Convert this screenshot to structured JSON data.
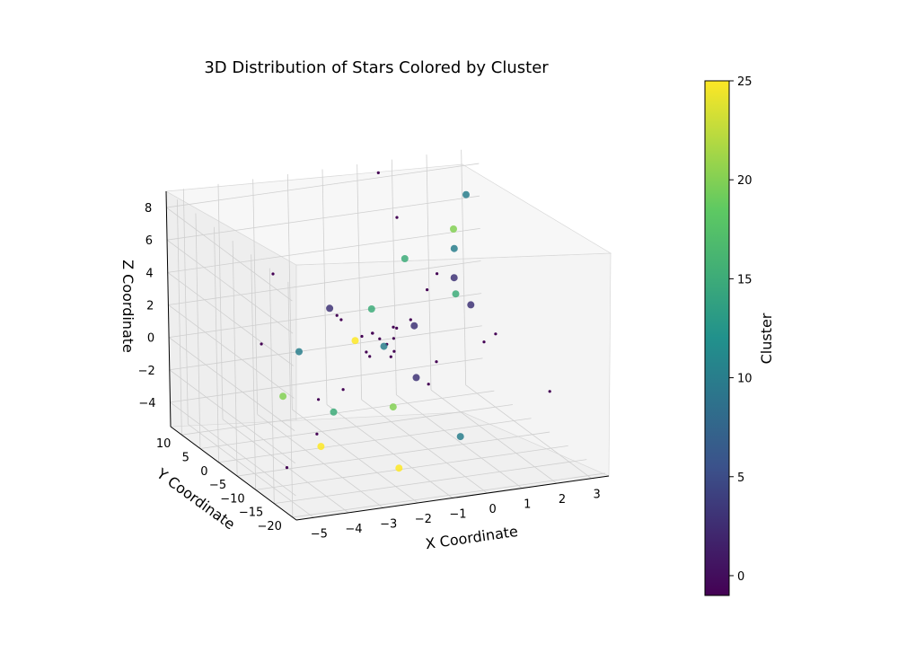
{
  "chart_data": {
    "type": "scatter",
    "title": "3D Distribution of Stars Colored by Cluster",
    "xlabel": "X Coordinate",
    "ylabel": "Y Coordinate",
    "zlabel": "Z Coordinate",
    "x_ticks": [
      "−5",
      "−4",
      "−3",
      "−2",
      "−1",
      "0",
      "1",
      "2",
      "3"
    ],
    "y_ticks": [
      "10",
      "5",
      "0",
      "−5",
      "−10",
      "−15",
      "−20"
    ],
    "z_ticks": [
      "8",
      "6",
      "4",
      "2",
      "0",
      "−2",
      "−4"
    ],
    "xlim": [
      -5.5,
      3.5
    ],
    "ylim": [
      -21,
      13
    ],
    "zlim": [
      -5.5,
      9
    ],
    "grid": true,
    "colorbar": {
      "label": "Cluster",
      "ticks": [
        "25",
        "20",
        "15",
        "10",
        "5",
        "0"
      ],
      "range": [
        -1,
        25
      ],
      "colormap": "viridis"
    },
    "series": [
      {
        "cluster": -1,
        "note_marker": "small",
        "points": [
          [
            -0.6,
            2,
            0.3
          ],
          [
            -0.5,
            1,
            0.1
          ],
          [
            -0.7,
            3,
            0.5
          ],
          [
            -0.4,
            0,
            -0.2
          ],
          [
            -0.8,
            2,
            0.7
          ],
          [
            -0.3,
            1,
            0.4
          ],
          [
            -0.6,
            -1,
            -0.3
          ],
          [
            -0.9,
            4,
            0.2
          ],
          [
            -0.2,
            2,
            0.9
          ],
          [
            -1.0,
            1,
            -0.5
          ],
          [
            0.0,
            3,
            0.6
          ],
          [
            -1.2,
            0,
            0.0
          ],
          [
            0.3,
            2,
            1.2
          ],
          [
            -1.5,
            5,
            1.5
          ],
          [
            0.6,
            -2,
            -0.8
          ],
          [
            -1.8,
            1,
            2.0
          ],
          [
            1.0,
            4,
            2.5
          ],
          [
            -2.2,
            -3,
            -1.5
          ],
          [
            1.5,
            6,
            3.0
          ],
          [
            -2.6,
            0,
            -2.5
          ],
          [
            2.0,
            -5,
            1.0
          ],
          [
            -3.0,
            8,
            4.0
          ],
          [
            2.5,
            3,
            -1.0
          ],
          [
            -3.5,
            -8,
            -3.0
          ],
          [
            0.8,
            10,
            6.0
          ],
          [
            -4.0,
            2,
            1.0
          ],
          [
            3.0,
            -10,
            -2.0
          ],
          [
            -1.0,
            -15,
            0.5
          ],
          [
            0.5,
            12,
            8.5
          ],
          [
            -4.8,
            -12,
            -4.0
          ]
        ]
      },
      {
        "cluster": 3,
        "note_marker": "large",
        "points": [
          [
            -0.2,
            -4,
            -1.2
          ],
          [
            0.4,
            2,
            0.8
          ],
          [
            -1.6,
            6,
            1.8
          ],
          [
            1.2,
            -6,
            3.2
          ],
          [
            2.2,
            8,
            2.2
          ]
        ]
      },
      {
        "cluster": 10,
        "note_marker": "large",
        "points": [
          [
            -0.9,
            -2,
            0.6
          ],
          [
            1.8,
            4,
            4.8
          ],
          [
            -2.4,
            7,
            -0.8
          ],
          [
            0.2,
            -12,
            -3.6
          ],
          [
            2.8,
            10,
            6.8
          ]
        ]
      },
      {
        "cluster": 15,
        "note_marker": "large",
        "points": [
          [
            -0.5,
            5,
            1.6
          ],
          [
            1.4,
            0,
            2.8
          ],
          [
            -2.8,
            -6,
            -2.2
          ],
          [
            0.9,
            9,
            3.6
          ]
        ]
      },
      {
        "cluster": 20,
        "note_marker": "large",
        "points": [
          [
            -1.4,
            -9,
            -1.8
          ],
          [
            2.0,
            6,
            5.6
          ],
          [
            -3.2,
            4,
            -2.8
          ]
        ]
      },
      {
        "cluster": 25,
        "note_marker": "large",
        "points": [
          [
            -2.0,
            -16,
            -4.2
          ],
          [
            -3.6,
            -10,
            -3.4
          ],
          [
            -1.2,
            3,
            0.2
          ]
        ]
      }
    ]
  }
}
